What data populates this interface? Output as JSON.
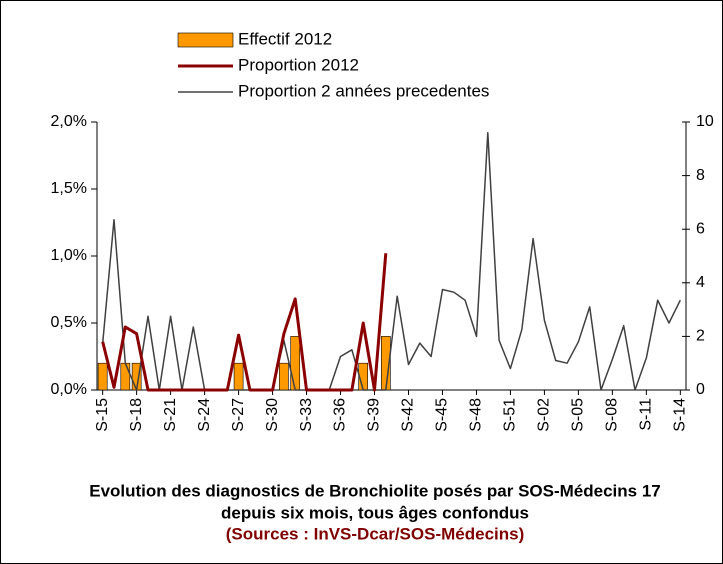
{
  "chart_data": {
    "type": "bar-line",
    "title": "Evolution des diagnostics de Bronchiolite posés par SOS-Médecins 17",
    "subtitle": "depuis six mois, tous âges confondus",
    "source": "(Sources : InVS-Dcar/SOS-Médecins)",
    "categories": [
      "S-15",
      null,
      null,
      "S-18",
      null,
      null,
      "S-21",
      null,
      null,
      "S-24",
      null,
      null,
      "S-27",
      null,
      null,
      "S-30",
      null,
      null,
      "S-33",
      null,
      null,
      "S-36",
      null,
      null,
      "S-39",
      null,
      null,
      "S-42",
      null,
      null,
      "S-45",
      null,
      null,
      "S-48",
      null,
      null,
      "S-51",
      null,
      null,
      "S-02",
      null,
      null,
      "S-05",
      null,
      null,
      "S-08",
      null,
      null,
      "S-11",
      null,
      null,
      "S-14"
    ],
    "series": [
      {
        "name": "Effectif 2012",
        "color": "#ff9900",
        "axis": "y2",
        "kind": "bar",
        "values": [
          1,
          0,
          1,
          1,
          0,
          0,
          0,
          0,
          0,
          0,
          0,
          0,
          1,
          0,
          0,
          0,
          1,
          2,
          0,
          0,
          0,
          0,
          0,
          1,
          0,
          2,
          null,
          null,
          null,
          null,
          null,
          null,
          null,
          null,
          null,
          null,
          null,
          null,
          null,
          null,
          null,
          null,
          null,
          null,
          null,
          null,
          null,
          null,
          null,
          null,
          null,
          null
        ]
      },
      {
        "name": "Proportion 2012",
        "color": "#8b0000",
        "kind": "line",
        "values": [
          0.36,
          0.02,
          0.47,
          0.42,
          0,
          0,
          0,
          0,
          0,
          0,
          0,
          0,
          0.41,
          0,
          0,
          0,
          0.42,
          0.68,
          0,
          0,
          0,
          0,
          0,
          0.5,
          0,
          1.02,
          null,
          null,
          null,
          null,
          null,
          null,
          null,
          null,
          null,
          null,
          null,
          null,
          null,
          null,
          null,
          null,
          null,
          null,
          null,
          null,
          null,
          null,
          null,
          null,
          null,
          null
        ]
      },
      {
        "name": "Proportion 2 années precedentes",
        "color": "#404040",
        "kind": "line",
        "values": [
          0.35,
          1.27,
          0.2,
          0,
          0.55,
          0,
          0.55,
          0,
          0.47,
          0,
          0,
          0,
          0,
          0,
          0,
          0,
          0.37,
          0,
          0,
          0,
          0,
          0.25,
          0.3,
          0,
          0,
          0,
          0.7,
          0.19,
          0.35,
          0.25,
          0.75,
          0.73,
          0.67,
          0.4,
          1.92,
          0.37,
          0.16,
          0.45,
          1.13,
          0.52,
          0.22,
          0.2,
          0.36,
          0.62,
          0,
          0.23,
          0.48,
          0,
          0.24,
          0.67,
          0.5,
          0.67
        ]
      }
    ],
    "ylim": [
      0,
      2
    ],
    "yticks": [
      {
        "value": 0,
        "label": "0,0%"
      },
      {
        "value": 0.5,
        "label": "0,5%"
      },
      {
        "value": 1,
        "label": "1,0%"
      },
      {
        "value": 1.5,
        "label": "1,5%"
      },
      {
        "value": 2,
        "label": "2,0%"
      }
    ],
    "y2lim": [
      0,
      10
    ],
    "y2ticks": [
      0,
      2,
      4,
      6,
      8,
      10
    ]
  }
}
